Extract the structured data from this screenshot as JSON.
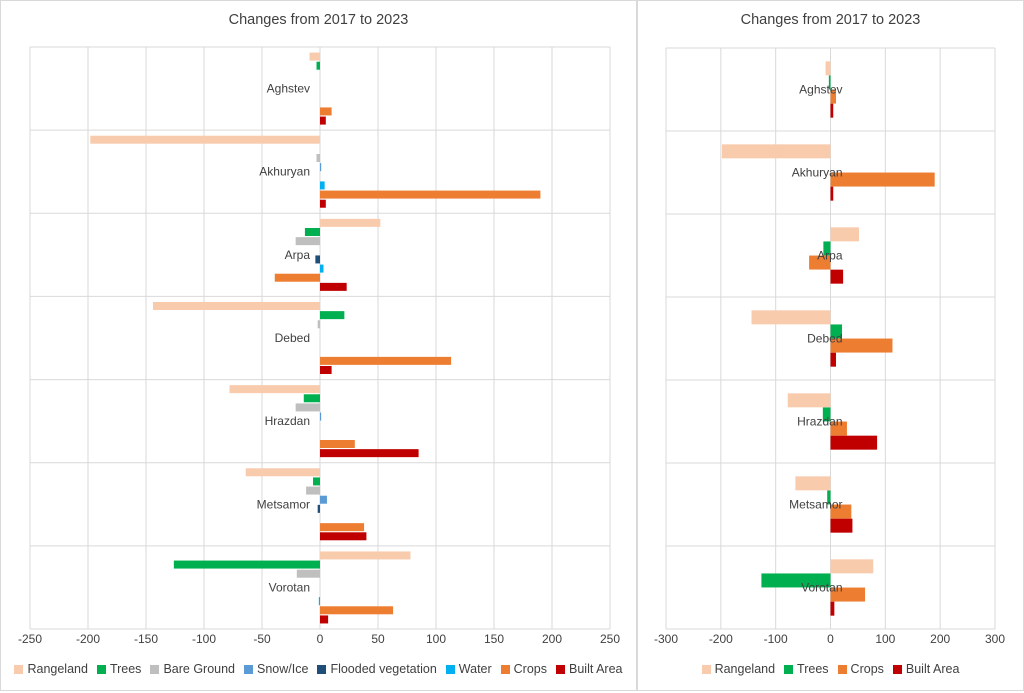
{
  "chart_data": [
    {
      "type": "bar",
      "orientation": "horizontal",
      "title": "Changes from 2017 to 2023",
      "xlim": [
        -250,
        250
      ],
      "xticks": [
        -250,
        -200,
        -150,
        -100,
        -50,
        0,
        50,
        100,
        150,
        200,
        250
      ],
      "grid": true,
      "legend_position": "bottom",
      "categories": [
        "Aghstev",
        "Akhuryan",
        "Arpa",
        "Debed",
        "Hrazdan",
        "Metsamor",
        "Vorotan"
      ],
      "series": [
        {
          "name": "Rangeland",
          "color": "#f8cbad",
          "values": [
            -9,
            -198,
            52,
            -144,
            -78,
            -64,
            78
          ]
        },
        {
          "name": "Trees",
          "color": "#00b050",
          "values": [
            -3,
            0,
            -13,
            21,
            -14,
            -6,
            -126
          ]
        },
        {
          "name": "Bare Ground",
          "color": "#bfbfbf",
          "values": [
            0,
            -3,
            -21,
            -2,
            -21,
            -12,
            -20
          ]
        },
        {
          "name": "Snow/Ice",
          "color": "#5b9bd5",
          "values": [
            0,
            1,
            0,
            0,
            1,
            6,
            0
          ]
        },
        {
          "name": "Flooded vegetation",
          "color": "#1f4e79",
          "values": [
            0,
            0,
            -4,
            0,
            0,
            -2,
            0
          ]
        },
        {
          "name": "Water",
          "color": "#00b0f0",
          "values": [
            0,
            4,
            3,
            0,
            0,
            0,
            -1
          ]
        },
        {
          "name": "Crops",
          "color": "#ed7d31",
          "values": [
            10,
            190,
            -39,
            113,
            30,
            38,
            63
          ]
        },
        {
          "name": "Built Area",
          "color": "#c00000",
          "values": [
            5,
            5,
            23,
            10,
            85,
            40,
            7
          ]
        }
      ]
    },
    {
      "type": "bar",
      "orientation": "horizontal",
      "title": "Changes from 2017 to 2023",
      "xlim": [
        -300,
        300
      ],
      "xticks": [
        -300,
        -200,
        -100,
        0,
        100,
        200,
        300
      ],
      "grid": true,
      "legend_position": "bottom",
      "categories": [
        "Aghstev",
        "Akhuryan",
        "Arpa",
        "Debed",
        "Hrazdan",
        "Metsamor",
        "Vorotan"
      ],
      "series": [
        {
          "name": "Rangeland",
          "color": "#f8cbad",
          "values": [
            -9,
            -198,
            52,
            -144,
            -78,
            -64,
            78
          ]
        },
        {
          "name": "Trees",
          "color": "#00b050",
          "values": [
            -3,
            0,
            -13,
            21,
            -14,
            -6,
            -126
          ]
        },
        {
          "name": "Crops",
          "color": "#ed7d31",
          "values": [
            10,
            190,
            -39,
            113,
            30,
            38,
            63
          ]
        },
        {
          "name": "Built Area",
          "color": "#c00000",
          "values": [
            5,
            5,
            23,
            10,
            85,
            40,
            7
          ]
        }
      ]
    }
  ]
}
